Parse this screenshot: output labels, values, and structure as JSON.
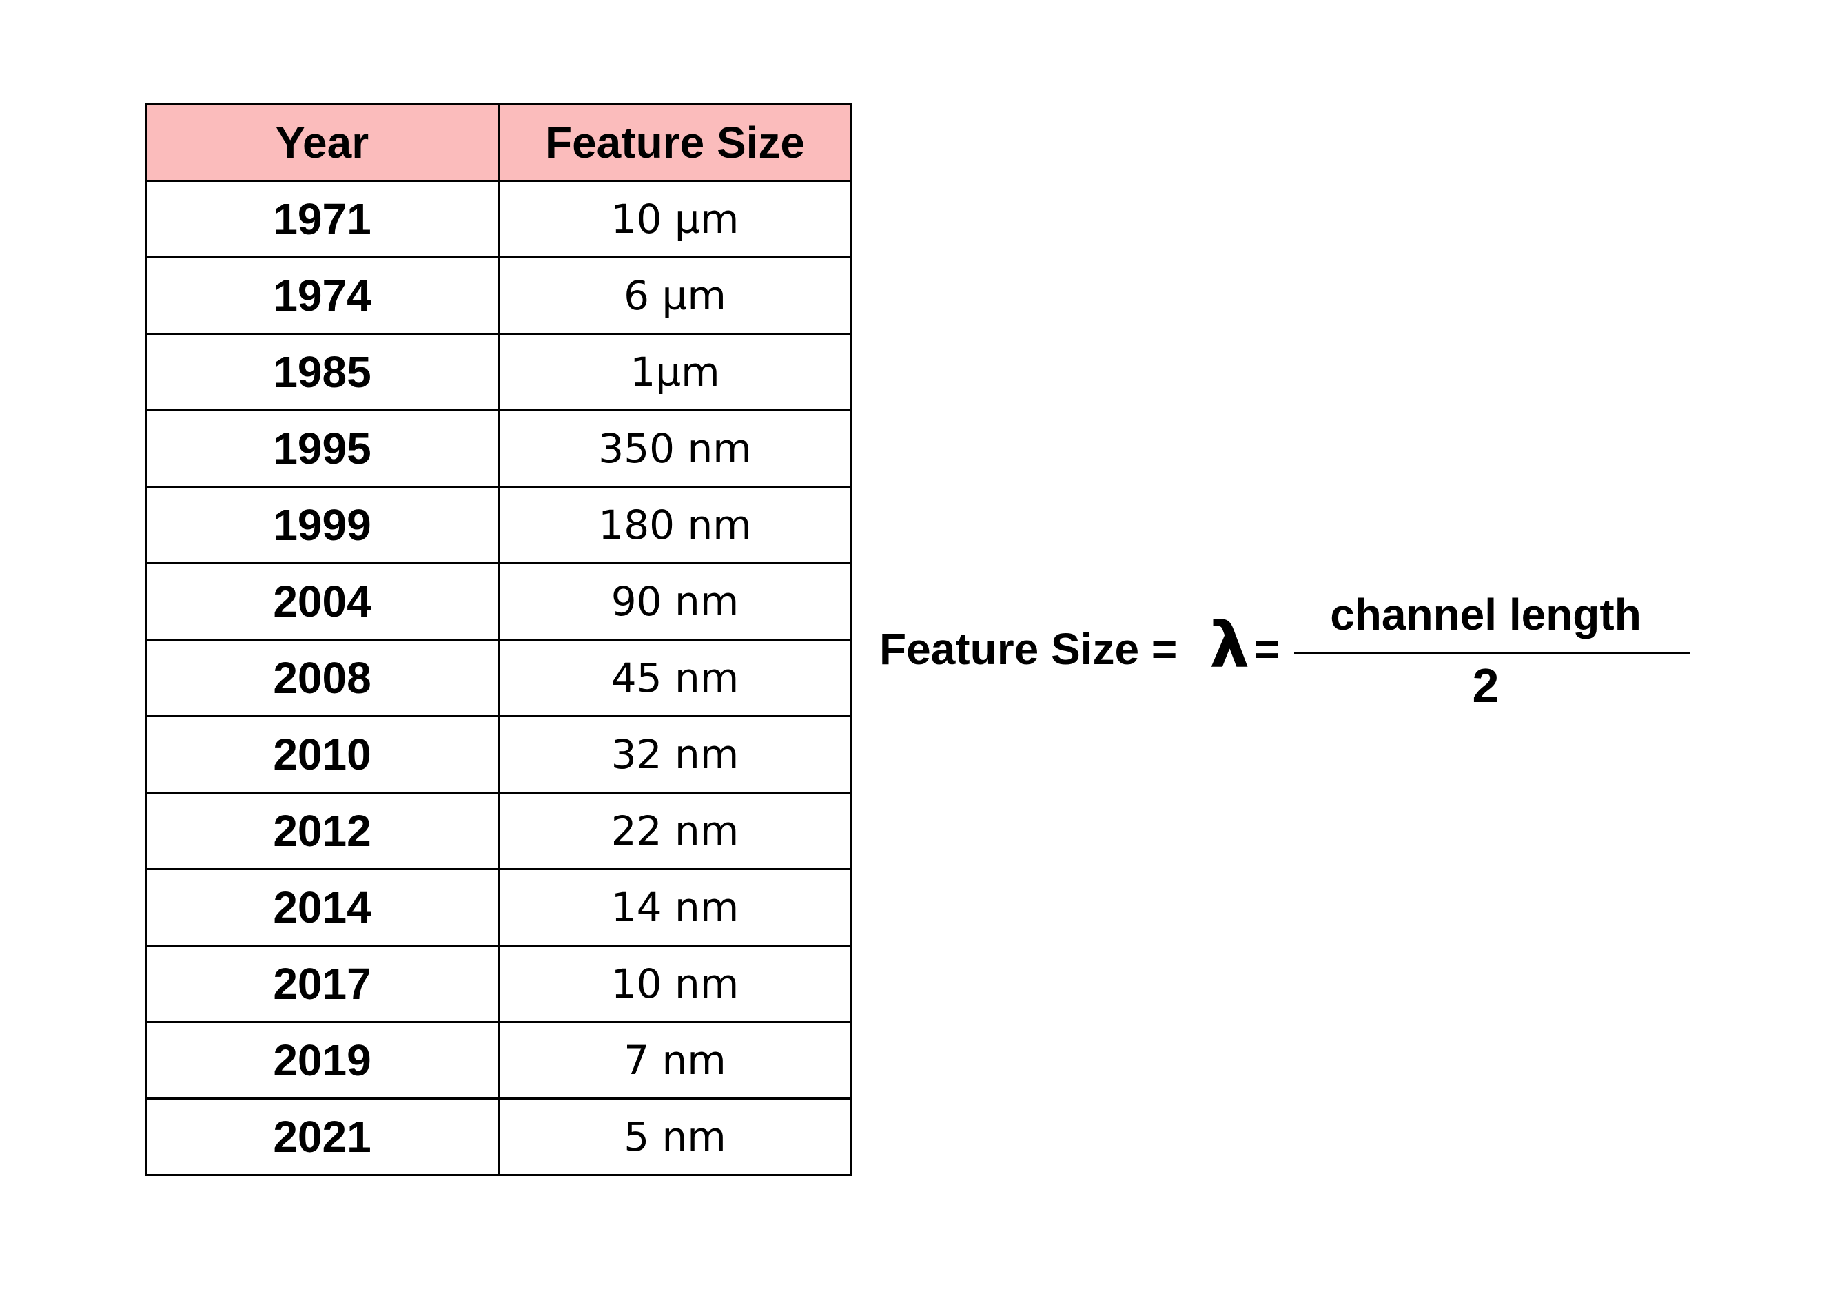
{
  "table": {
    "headers": [
      "Year",
      "Feature Size"
    ],
    "rows": [
      {
        "year": "1971",
        "size": "10 µm"
      },
      {
        "year": "1974",
        "size": "6 µm"
      },
      {
        "year": "1985",
        "size": "1µm"
      },
      {
        "year": "1995",
        "size": "350 nm"
      },
      {
        "year": "1999",
        "size": "180 nm"
      },
      {
        "year": "2004",
        "size": "90 nm"
      },
      {
        "year": "2008",
        "size": "45 nm"
      },
      {
        "year": "2010",
        "size": "32 nm"
      },
      {
        "year": "2012",
        "size": "22 nm"
      },
      {
        "year": "2014",
        "size": "14 nm"
      },
      {
        "year": "2017",
        "size": "10 nm"
      },
      {
        "year": "2019",
        "size": "7 nm"
      },
      {
        "year": "2021",
        "size": "5 nm"
      }
    ],
    "header_color": "#fbbcbc"
  },
  "formula": {
    "lhs": "Feature Size =",
    "symbol": "λ",
    "equals": "=",
    "numerator": "channel length",
    "denominator": "2"
  }
}
